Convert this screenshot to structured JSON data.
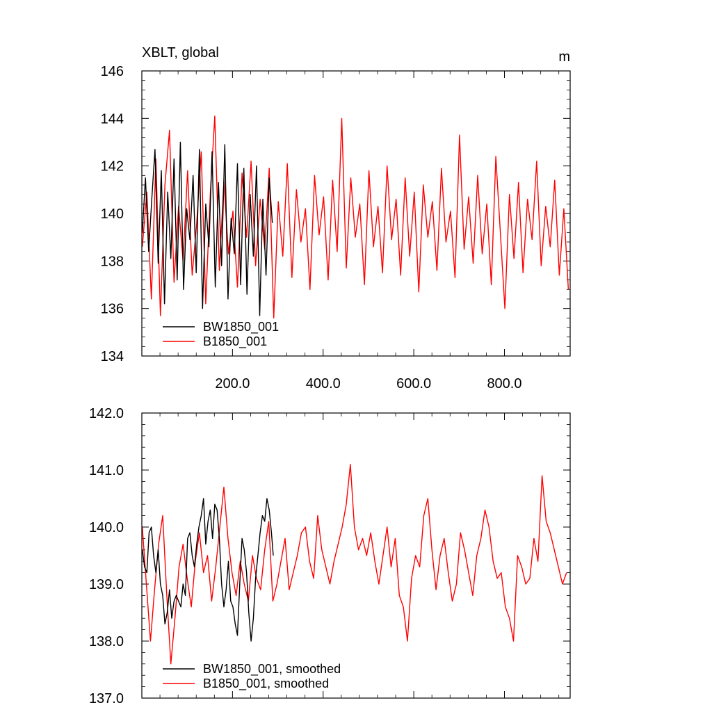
{
  "chart_data": [
    {
      "type": "line",
      "title_left": "XBLT, global",
      "title_right": "m",
      "xlim": [
        0,
        945
      ],
      "ylim": [
        134,
        146
      ],
      "yticks": [
        134,
        136,
        138,
        140,
        142,
        144,
        146
      ],
      "ytick_labels": [
        "134",
        "136",
        "138",
        "140",
        "142",
        "144",
        "146"
      ],
      "xticks": [
        200,
        400,
        600,
        800
      ],
      "xtick_labels": [
        "200.0",
        "400.0",
        "600.0",
        "800.0"
      ],
      "legend_location": "bottom-left",
      "series": [
        {
          "name": "BW1850_001",
          "color": "#000000",
          "x": [
            1,
            8,
            15,
            22,
            29,
            36,
            43,
            50,
            57,
            64,
            71,
            78,
            85,
            92,
            99,
            106,
            113,
            120,
            127,
            134,
            141,
            148,
            155,
            162,
            169,
            176,
            183,
            190,
            197,
            204,
            211,
            218,
            225,
            232,
            239,
            246,
            253,
            260,
            267,
            274,
            281,
            288
          ],
          "y": [
            139.2,
            141.5,
            138.4,
            140.6,
            142.7,
            137.9,
            141.8,
            136.2,
            140.9,
            138.1,
            142.3,
            137.2,
            143.0,
            136.8,
            140.2,
            138.9,
            141.6,
            137.5,
            142.7,
            136.0,
            140.4,
            138.6,
            142.6,
            136.9,
            141.3,
            137.8,
            142.9,
            136.4,
            139.8,
            138.3,
            142.1,
            137.0,
            141.9,
            136.6,
            140.8,
            138.2,
            142.0,
            135.7,
            140.6,
            137.4,
            141.5,
            139.6
          ]
        },
        {
          "name": "B1850_001",
          "color": "#ff0000",
          "x": [
            1,
            11,
            21,
            31,
            41,
            51,
            61,
            71,
            81,
            91,
            101,
            111,
            121,
            131,
            141,
            151,
            161,
            171,
            181,
            191,
            201,
            211,
            221,
            231,
            241,
            251,
            261,
            271,
            281,
            291,
            301,
            311,
            321,
            331,
            341,
            351,
            361,
            371,
            381,
            391,
            401,
            411,
            421,
            431,
            441,
            451,
            461,
            471,
            481,
            491,
            501,
            511,
            521,
            531,
            541,
            551,
            561,
            571,
            581,
            591,
            601,
            611,
            621,
            631,
            641,
            651,
            661,
            671,
            681,
            691,
            701,
            711,
            721,
            731,
            741,
            751,
            761,
            771,
            781,
            791,
            801,
            811,
            821,
            831,
            841,
            851,
            861,
            871,
            881,
            891,
            901,
            911,
            921,
            931,
            941
          ],
          "y": [
            138.6,
            140.9,
            136.4,
            142.3,
            135.7,
            141.2,
            143.5,
            137.1,
            140.3,
            138.0,
            141.8,
            137.4,
            139.6,
            142.6,
            136.2,
            140.8,
            144.1,
            137.6,
            141.4,
            138.3,
            140.1,
            136.9,
            141.7,
            139.0,
            142.2,
            137.8,
            140.6,
            138.5,
            141.9,
            135.6,
            140.5,
            138.2,
            142.1,
            137.3,
            141.0,
            138.8,
            140.2,
            136.8,
            141.6,
            139.1,
            140.7,
            137.2,
            141.4,
            138.4,
            144.0,
            137.7,
            141.5,
            139.0,
            140.4,
            137.0,
            141.8,
            138.6,
            140.3,
            137.5,
            142.0,
            138.9,
            140.6,
            137.4,
            141.5,
            138.2,
            140.9,
            136.7,
            141.2,
            139.0,
            140.5,
            137.6,
            141.9,
            138.8,
            140.1,
            137.3,
            143.3,
            138.5,
            140.7,
            137.9,
            141.6,
            138.3,
            140.4,
            137.0,
            142.4,
            139.2,
            136.0,
            140.8,
            138.1,
            141.3,
            137.5,
            140.6,
            138.9,
            142.2,
            137.8,
            140.3,
            138.6,
            141.4,
            137.4,
            140.2,
            136.8
          ]
        }
      ]
    },
    {
      "type": "line",
      "xlim": [
        0,
        945
      ],
      "ylim": [
        137,
        142
      ],
      "yticks": [
        137,
        138,
        139,
        140,
        141,
        142
      ],
      "ytick_labels": [
        "137.0",
        "138.0",
        "139.0",
        "140.0",
        "141.0",
        "142.0"
      ],
      "xticks": [
        200,
        400,
        600,
        800
      ],
      "legend_location": "bottom-left",
      "series": [
        {
          "name": "BW1850_001, smoothed",
          "color": "#000000",
          "x": [
            1,
            6,
            11,
            16,
            21,
            26,
            31,
            36,
            41,
            46,
            51,
            56,
            61,
            66,
            71,
            76,
            81,
            86,
            91,
            96,
            101,
            106,
            111,
            116,
            121,
            126,
            131,
            136,
            141,
            146,
            151,
            156,
            161,
            166,
            171,
            176,
            181,
            186,
            191,
            196,
            201,
            206,
            211,
            216,
            221,
            226,
            231,
            236,
            241,
            246,
            251,
            256,
            261,
            266,
            271,
            276,
            281,
            286,
            290
          ],
          "y": [
            139.6,
            139.3,
            139.2,
            139.9,
            140.0,
            139.5,
            139.2,
            139.6,
            139.0,
            138.8,
            138.3,
            138.5,
            138.9,
            138.4,
            138.7,
            138.8,
            138.7,
            138.6,
            139.0,
            138.8,
            139.8,
            139.9,
            139.5,
            139.3,
            139.7,
            140.0,
            140.2,
            140.5,
            139.7,
            140.1,
            140.3,
            139.8,
            140.4,
            140.3,
            139.8,
            139.0,
            138.6,
            138.9,
            139.4,
            138.7,
            138.6,
            138.3,
            138.1,
            139.0,
            139.8,
            139.6,
            139.2,
            138.5,
            138.0,
            138.4,
            139.1,
            139.5,
            139.9,
            140.2,
            140.1,
            140.5,
            140.3,
            139.9,
            139.5
          ]
        },
        {
          "name": "B1850_001, smoothed",
          "color": "#ff0000",
          "x": [
            1,
            10,
            19,
            28,
            37,
            46,
            55,
            64,
            73,
            82,
            91,
            100,
            109,
            118,
            127,
            136,
            145,
            154,
            163,
            172,
            181,
            190,
            199,
            208,
            217,
            226,
            235,
            244,
            253,
            262,
            271,
            280,
            289,
            298,
            307,
            316,
            325,
            334,
            343,
            352,
            361,
            370,
            379,
            388,
            397,
            406,
            415,
            424,
            433,
            442,
            451,
            460,
            469,
            478,
            487,
            496,
            505,
            514,
            523,
            532,
            541,
            550,
            559,
            568,
            577,
            586,
            595,
            604,
            613,
            622,
            631,
            640,
            649,
            658,
            667,
            676,
            685,
            694,
            703,
            712,
            721,
            730,
            739,
            748,
            757,
            766,
            775,
            784,
            793,
            802,
            811,
            820,
            829,
            838,
            847,
            856,
            865,
            874,
            883,
            892,
            901,
            910,
            919,
            928,
            937
          ],
          "y": [
            140.0,
            139.0,
            138.0,
            138.9,
            139.7,
            140.2,
            138.8,
            137.6,
            138.4,
            139.3,
            139.7,
            139.1,
            138.6,
            139.4,
            139.9,
            139.2,
            139.5,
            138.7,
            139.3,
            140.0,
            140.7,
            139.8,
            139.2,
            138.8,
            139.4,
            139.0,
            138.7,
            139.5,
            139.1,
            138.9,
            139.6,
            140.1,
            138.7,
            139.0,
            139.4,
            139.8,
            138.9,
            139.2,
            139.5,
            139.9,
            140.0,
            139.4,
            139.1,
            140.2,
            139.6,
            139.3,
            139.0,
            139.4,
            139.7,
            140.0,
            140.4,
            141.1,
            140.0,
            139.6,
            139.8,
            139.5,
            139.9,
            139.4,
            139.0,
            139.5,
            140.0,
            139.3,
            139.8,
            138.8,
            138.6,
            138.0,
            139.1,
            139.5,
            139.3,
            140.2,
            140.5,
            139.6,
            138.9,
            139.5,
            139.8,
            139.2,
            138.7,
            139.0,
            139.9,
            139.6,
            139.2,
            138.8,
            139.5,
            139.8,
            140.3,
            140.0,
            139.4,
            139.1,
            139.2,
            138.6,
            138.4,
            138.0,
            139.5,
            139.3,
            139.0,
            139.1,
            139.8,
            139.4,
            140.9,
            140.1,
            139.9,
            139.6,
            139.3,
            139.0,
            139.2
          ]
        }
      ]
    }
  ]
}
